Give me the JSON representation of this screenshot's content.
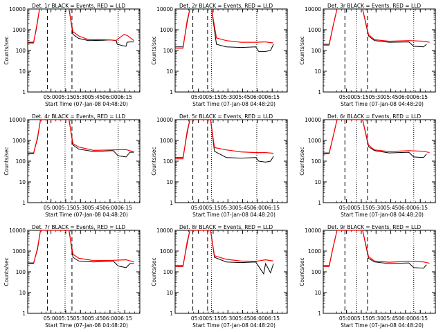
{
  "chart_data": {
    "type": "line",
    "ylabel": "Counts/sec",
    "xlabel": "Start Time (07-Jan-08 04:48:20)",
    "x_ticks": [
      "05:00",
      "05:15",
      "05:30",
      "05:45",
      "06:00",
      "06:15"
    ],
    "y_ticks": [
      "1",
      "10",
      "100",
      "1000",
      "10000"
    ],
    "y_scale": "log",
    "ylim": [
      1,
      10000
    ],
    "xlim_minutes": [
      -12,
      102
    ],
    "x_tick_minutes": [
      11.67,
      26.67,
      41.67,
      56.67,
      71.67,
      86.67
    ],
    "series_colors": {
      "Events": "#000000",
      "LLD": "#ff0000"
    },
    "panels": [
      {
        "title": "Det. 1r  BLACK = Events, RED = LLD",
        "dashed_lines_min": [
          8,
          33
        ],
        "dotted_lines_min": [
          26,
          80
        ],
        "events": [
          [
            -12,
            250
          ],
          [
            -6,
            250
          ],
          [
            -3,
            1200
          ],
          [
            0,
            10000
          ],
          [
            30,
            10000
          ],
          [
            34,
            600
          ],
          [
            40,
            380
          ],
          [
            50,
            300
          ],
          [
            65,
            310
          ],
          [
            72,
            320
          ],
          [
            78,
            300
          ],
          [
            79,
            200
          ],
          [
            85,
            170
          ],
          [
            88,
            160
          ],
          [
            89,
            250
          ],
          [
            92,
            260
          ],
          [
            96,
            260
          ]
        ],
        "lld": [
          [
            -12,
            230
          ],
          [
            -6,
            230
          ],
          [
            -3,
            1400
          ],
          [
            0,
            10000
          ],
          [
            30,
            10000
          ],
          [
            34,
            800
          ],
          [
            40,
            500
          ],
          [
            50,
            330
          ],
          [
            65,
            330
          ],
          [
            78,
            310
          ],
          [
            86,
            600
          ],
          [
            90,
            500
          ],
          [
            96,
            300
          ]
        ]
      },
      {
        "title": "Det. 2r  BLACK = Events, RED = LLD",
        "dashed_lines_min": [
          6,
          21
        ],
        "dotted_lines_min": [
          25,
          71
        ],
        "events": [
          [
            -12,
            150
          ],
          [
            -4,
            150
          ],
          [
            0,
            2000
          ],
          [
            3,
            10000
          ],
          [
            25,
            10000
          ],
          [
            30,
            200
          ],
          [
            40,
            150
          ],
          [
            55,
            140
          ],
          [
            70,
            150
          ],
          [
            73,
            90
          ],
          [
            80,
            90
          ],
          [
            85,
            100
          ],
          [
            88,
            200
          ]
        ],
        "lld": [
          [
            -12,
            130
          ],
          [
            -4,
            130
          ],
          [
            0,
            2500
          ],
          [
            3,
            10000
          ],
          [
            25,
            10000
          ],
          [
            30,
            400
          ],
          [
            40,
            300
          ],
          [
            55,
            250
          ],
          [
            70,
            250
          ],
          [
            80,
            260
          ],
          [
            88,
            230
          ]
        ]
      },
      {
        "title": "Det. 3r  BLACK = Events, RED = LLD",
        "dashed_lines_min": [
          10,
          33
        ],
        "dotted_lines_min": [
          22,
          80
        ],
        "events": [
          [
            -12,
            200
          ],
          [
            -6,
            200
          ],
          [
            -2,
            1500
          ],
          [
            2,
            10000
          ],
          [
            28,
            10000
          ],
          [
            34,
            500
          ],
          [
            40,
            300
          ],
          [
            55,
            250
          ],
          [
            75,
            260
          ],
          [
            80,
            160
          ],
          [
            90,
            150
          ],
          [
            93,
            200
          ]
        ],
        "lld": [
          [
            -12,
            180
          ],
          [
            -6,
            180
          ],
          [
            -2,
            1500
          ],
          [
            2,
            10000
          ],
          [
            28,
            10000
          ],
          [
            34,
            600
          ],
          [
            40,
            330
          ],
          [
            55,
            280
          ],
          [
            75,
            300
          ],
          [
            90,
            280
          ],
          [
            96,
            250
          ]
        ]
      },
      {
        "title": "Det. 4r  BLACK = Events, RED = LLD",
        "dashed_lines_min": [
          8,
          33
        ],
        "dotted_lines_min": [
          26,
          80
        ],
        "events": [
          [
            -12,
            250
          ],
          [
            -6,
            250
          ],
          [
            -2,
            1200
          ],
          [
            1,
            10000
          ],
          [
            30,
            10000
          ],
          [
            34,
            600
          ],
          [
            40,
            380
          ],
          [
            55,
            290
          ],
          [
            75,
            320
          ],
          [
            80,
            180
          ],
          [
            88,
            160
          ],
          [
            92,
            270
          ],
          [
            96,
            270
          ]
        ],
        "lld": [
          [
            -12,
            230
          ],
          [
            -6,
            230
          ],
          [
            -2,
            1400
          ],
          [
            1,
            10000
          ],
          [
            30,
            10000
          ],
          [
            34,
            700
          ],
          [
            40,
            480
          ],
          [
            55,
            330
          ],
          [
            75,
            350
          ],
          [
            88,
            360
          ],
          [
            96,
            280
          ]
        ]
      },
      {
        "title": "Det. 5r  BLACK = Events, RED = LLD",
        "dashed_lines_min": [
          6,
          21
        ],
        "dotted_lines_min": [
          25,
          71
        ],
        "events": [
          [
            -12,
            150
          ],
          [
            -4,
            150
          ],
          [
            0,
            2000
          ],
          [
            3,
            10000
          ],
          [
            24,
            10000
          ],
          [
            28,
            300
          ],
          [
            40,
            150
          ],
          [
            55,
            140
          ],
          [
            70,
            150
          ],
          [
            73,
            100
          ],
          [
            80,
            90
          ],
          [
            85,
            100
          ],
          [
            88,
            170
          ]
        ],
        "lld": [
          [
            -12,
            130
          ],
          [
            -4,
            130
          ],
          [
            0,
            2500
          ],
          [
            3,
            10000
          ],
          [
            24,
            10000
          ],
          [
            28,
            450
          ],
          [
            40,
            350
          ],
          [
            55,
            280
          ],
          [
            70,
            260
          ],
          [
            80,
            260
          ],
          [
            88,
            240
          ]
        ]
      },
      {
        "title": "Det. 6r  BLACK = Events, RED = LLD",
        "dashed_lines_min": [
          10,
          33
        ],
        "dotted_lines_min": [
          22,
          80
        ],
        "events": [
          [
            -12,
            250
          ],
          [
            -6,
            250
          ],
          [
            -2,
            1500
          ],
          [
            2,
            10000
          ],
          [
            28,
            10000
          ],
          [
            34,
            500
          ],
          [
            40,
            320
          ],
          [
            55,
            250
          ],
          [
            75,
            270
          ],
          [
            80,
            160
          ],
          [
            90,
            150
          ],
          [
            93,
            220
          ]
        ],
        "lld": [
          [
            -12,
            230
          ],
          [
            -6,
            230
          ],
          [
            -2,
            1500
          ],
          [
            2,
            10000
          ],
          [
            28,
            10000
          ],
          [
            34,
            600
          ],
          [
            40,
            350
          ],
          [
            55,
            290
          ],
          [
            75,
            320
          ],
          [
            90,
            300
          ],
          [
            96,
            260
          ]
        ]
      },
      {
        "title": "Det. 7r  BLACK = Events, RED = LLD",
        "dashed_lines_min": [
          8,
          33
        ],
        "dotted_lines_min": [
          26,
          80
        ],
        "events": [
          [
            -12,
            270
          ],
          [
            -6,
            270
          ],
          [
            -2,
            1200
          ],
          [
            1,
            10000
          ],
          [
            30,
            10000
          ],
          [
            34,
            500
          ],
          [
            40,
            330
          ],
          [
            55,
            300
          ],
          [
            75,
            330
          ],
          [
            80,
            190
          ],
          [
            88,
            160
          ],
          [
            92,
            250
          ],
          [
            96,
            250
          ]
        ],
        "lld": [
          [
            -12,
            250
          ],
          [
            -6,
            250
          ],
          [
            -2,
            1400
          ],
          [
            1,
            10000
          ],
          [
            30,
            10000
          ],
          [
            34,
            700
          ],
          [
            40,
            450
          ],
          [
            55,
            350
          ],
          [
            75,
            360
          ],
          [
            88,
            380
          ],
          [
            96,
            300
          ]
        ]
      },
      {
        "title": "Det. 8r  BLACK = Events, RED = LLD",
        "dashed_lines_min": [
          6,
          21
        ],
        "dotted_lines_min": [
          25,
          71
        ],
        "events": [
          [
            -12,
            200
          ],
          [
            -4,
            200
          ],
          [
            0,
            2000
          ],
          [
            3,
            10000
          ],
          [
            24,
            10000
          ],
          [
            28,
            500
          ],
          [
            40,
            300
          ],
          [
            55,
            280
          ],
          [
            70,
            300
          ],
          [
            73,
            180
          ],
          [
            78,
            80
          ],
          [
            80,
            250
          ],
          [
            85,
            90
          ],
          [
            88,
            250
          ]
        ],
        "lld": [
          [
            -12,
            180
          ],
          [
            -4,
            180
          ],
          [
            0,
            2500
          ],
          [
            3,
            10000
          ],
          [
            24,
            10000
          ],
          [
            28,
            600
          ],
          [
            40,
            400
          ],
          [
            55,
            330
          ],
          [
            70,
            320
          ],
          [
            80,
            380
          ],
          [
            88,
            330
          ]
        ]
      },
      {
        "title": "Det. 9r  BLACK = Events, RED = LLD",
        "dashed_lines_min": [
          10,
          33
        ],
        "dotted_lines_min": [
          22,
          80
        ],
        "events": [
          [
            -12,
            200
          ],
          [
            -6,
            200
          ],
          [
            -2,
            1500
          ],
          [
            2,
            10000
          ],
          [
            28,
            10000
          ],
          [
            34,
            450
          ],
          [
            40,
            300
          ],
          [
            55,
            250
          ],
          [
            75,
            270
          ],
          [
            80,
            160
          ],
          [
            90,
            150
          ],
          [
            93,
            220
          ]
        ],
        "lld": [
          [
            -12,
            180
          ],
          [
            -6,
            180
          ],
          [
            -2,
            1500
          ],
          [
            2,
            10000
          ],
          [
            28,
            10000
          ],
          [
            34,
            550
          ],
          [
            40,
            330
          ],
          [
            55,
            290
          ],
          [
            75,
            320
          ],
          [
            90,
            300
          ],
          [
            96,
            260
          ]
        ]
      }
    ]
  }
}
